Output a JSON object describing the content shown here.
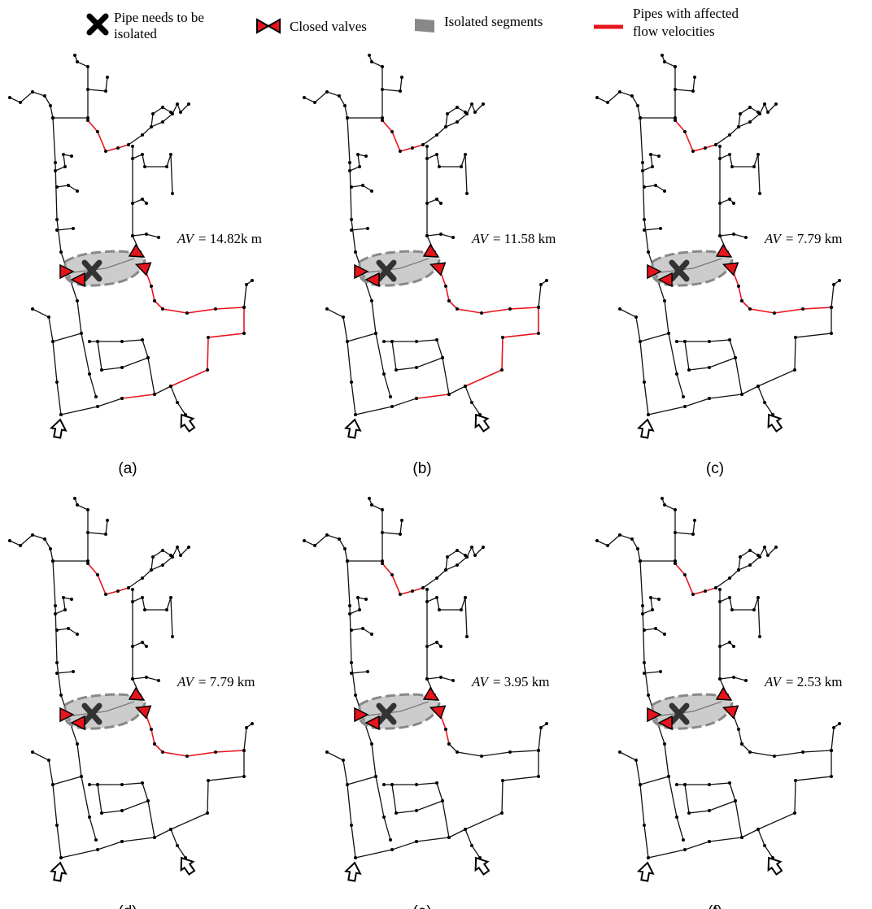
{
  "legend": [
    {
      "lines": [
        "Pipe needs to be",
        "isolated"
      ]
    },
    {
      "lines": [
        "Closed valves"
      ]
    },
    {
      "lines": [
        "Isolated segments"
      ]
    },
    {
      "lines": [
        "Pipes with affected",
        "flow velocities"
      ]
    }
  ],
  "panels": [
    {
      "label": "(a)",
      "av_symbol": "AV",
      "av_text": "= 14.82k m"
    },
    {
      "label": "(b)",
      "av_symbol": "AV",
      "av_text": "= 11.58 km"
    },
    {
      "label": "(c)",
      "av_symbol": "AV",
      "av_text": "= 7.79 km"
    },
    {
      "label": "(d)",
      "av_symbol": "AV",
      "av_text": "= 7.79 km"
    },
    {
      "label": "(e)",
      "av_symbol": "AV",
      "av_text": "= 3.95 km"
    },
    {
      "label": "(f)",
      "av_symbol": "AV",
      "av_text": "= 2.53 km"
    }
  ]
}
